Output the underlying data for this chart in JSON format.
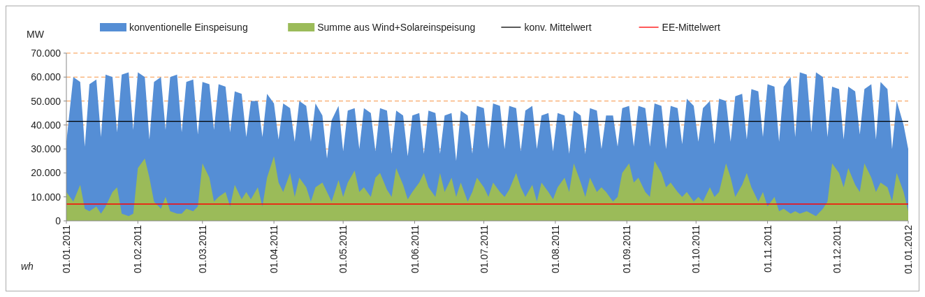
{
  "chart_data": {
    "type": "area",
    "ylabel": "MW",
    "annotations": [
      "wh"
    ],
    "x": [
      "2011-01-01",
      "2011-01-04",
      "2011-01-07",
      "2011-01-09",
      "2011-01-11",
      "2011-01-14",
      "2011-01-16",
      "2011-01-18",
      "2011-01-21",
      "2011-01-23",
      "2011-01-25",
      "2011-01-28",
      "2011-01-30",
      "2011-02-01",
      "2011-02-04",
      "2011-02-06",
      "2011-02-08",
      "2011-02-11",
      "2011-02-13",
      "2011-02-15",
      "2011-02-18",
      "2011-02-20",
      "2011-02-22",
      "2011-02-25",
      "2011-02-27",
      "2011-03-01",
      "2011-03-04",
      "2011-03-06",
      "2011-03-08",
      "2011-03-11",
      "2011-03-13",
      "2011-03-15",
      "2011-03-18",
      "2011-03-20",
      "2011-03-22",
      "2011-03-25",
      "2011-03-27",
      "2011-03-29",
      "2011-04-01",
      "2011-04-03",
      "2011-04-05",
      "2011-04-08",
      "2011-04-10",
      "2011-04-12",
      "2011-04-15",
      "2011-04-17",
      "2011-04-19",
      "2011-04-22",
      "2011-04-24",
      "2011-04-26",
      "2011-04-29",
      "2011-05-01",
      "2011-05-03",
      "2011-05-06",
      "2011-05-08",
      "2011-05-10",
      "2011-05-13",
      "2011-05-15",
      "2011-05-17",
      "2011-05-20",
      "2011-05-22",
      "2011-05-24",
      "2011-05-27",
      "2011-05-29",
      "2011-05-31",
      "2011-06-03",
      "2011-06-05",
      "2011-06-07",
      "2011-06-10",
      "2011-06-12",
      "2011-06-14",
      "2011-06-17",
      "2011-06-19",
      "2011-06-21",
      "2011-06-24",
      "2011-06-26",
      "2011-06-28",
      "2011-07-01",
      "2011-07-03",
      "2011-07-05",
      "2011-07-08",
      "2011-07-10",
      "2011-07-12",
      "2011-07-15",
      "2011-07-17",
      "2011-07-19",
      "2011-07-22",
      "2011-07-24",
      "2011-07-26",
      "2011-07-29",
      "2011-07-31",
      "2011-08-02",
      "2011-08-05",
      "2011-08-07",
      "2011-08-09",
      "2011-08-12",
      "2011-08-14",
      "2011-08-16",
      "2011-08-19",
      "2011-08-21",
      "2011-08-23",
      "2011-08-26",
      "2011-08-28",
      "2011-08-30",
      "2011-09-02",
      "2011-09-04",
      "2011-09-06",
      "2011-09-09",
      "2011-09-11",
      "2011-09-13",
      "2011-09-16",
      "2011-09-18",
      "2011-09-20",
      "2011-09-23",
      "2011-09-25",
      "2011-09-27",
      "2011-09-30",
      "2011-10-02",
      "2011-10-04",
      "2011-10-07",
      "2011-10-09",
      "2011-10-11",
      "2011-10-14",
      "2011-10-16",
      "2011-10-18",
      "2011-10-21",
      "2011-10-23",
      "2011-10-25",
      "2011-10-28",
      "2011-10-30",
      "2011-11-01",
      "2011-11-04",
      "2011-11-06",
      "2011-11-08",
      "2011-11-11",
      "2011-11-13",
      "2011-11-15",
      "2011-11-18",
      "2011-11-20",
      "2011-11-22",
      "2011-11-25",
      "2011-11-27",
      "2011-11-29",
      "2011-12-02",
      "2011-12-04",
      "2011-12-06",
      "2011-12-09",
      "2011-12-11",
      "2011-12-13",
      "2011-12-16",
      "2011-12-18",
      "2011-12-20",
      "2011-12-23",
      "2011-12-25",
      "2011-12-27",
      "2011-12-30",
      "2012-01-01"
    ],
    "series": [
      {
        "name": "konventionelle Einspeisung",
        "color": "#558ed5",
        "values": [
          33000,
          60000,
          58000,
          31000,
          57000,
          59000,
          35000,
          61000,
          60000,
          37000,
          61000,
          62000,
          38000,
          62000,
          60000,
          34000,
          58000,
          60000,
          38000,
          60000,
          61000,
          37000,
          58000,
          59000,
          36000,
          58000,
          57000,
          38000,
          57000,
          56000,
          37000,
          54000,
          53000,
          35000,
          50000,
          50000,
          35000,
          53000,
          49000,
          34000,
          49000,
          47000,
          33000,
          50000,
          48000,
          33000,
          49000,
          44000,
          26000,
          42000,
          48000,
          29000,
          46000,
          47000,
          30000,
          47000,
          45000,
          29000,
          47000,
          46000,
          28000,
          46000,
          44000,
          27000,
          44000,
          45000,
          28000,
          46000,
          45000,
          28000,
          44000,
          45000,
          25000,
          46000,
          44000,
          28000,
          48000,
          47000,
          30000,
          49000,
          48000,
          30000,
          48000,
          47000,
          29000,
          46000,
          48000,
          30000,
          44000,
          45000,
          29000,
          45000,
          44000,
          28000,
          46000,
          44000,
          28000,
          47000,
          46000,
          30000,
          44000,
          44000,
          31000,
          47000,
          48000,
          31000,
          48000,
          47000,
          31000,
          49000,
          48000,
          30000,
          48000,
          47000,
          32000,
          51000,
          48000,
          33000,
          47000,
          50000,
          32000,
          51000,
          50000,
          33000,
          52000,
          53000,
          34000,
          55000,
          54000,
          35000,
          57000,
          56000,
          33000,
          56000,
          60000,
          35000,
          62000,
          61000,
          37000,
          62000,
          60000,
          35000,
          56000,
          55000,
          34000,
          56000,
          54000,
          36000,
          55000,
          57000,
          34000,
          58000,
          55000,
          30000,
          50000,
          40000,
          30000
        ]
      },
      {
        "name": "Summe aus Wind+Solareinspeisung",
        "color": "#9bbb59",
        "values": [
          12000,
          8000,
          15000,
          5000,
          4000,
          6000,
          3000,
          6000,
          12000,
          14000,
          3000,
          2000,
          3000,
          22000,
          26000,
          18000,
          8000,
          5000,
          10000,
          4000,
          3000,
          3000,
          5000,
          4000,
          6000,
          24000,
          18000,
          8000,
          10000,
          12000,
          6000,
          15000,
          9000,
          12000,
          9000,
          14000,
          6000,
          18000,
          27000,
          16000,
          12000,
          20000,
          10000,
          18000,
          14000,
          8000,
          14000,
          16000,
          12000,
          8000,
          17000,
          10000,
          16000,
          21000,
          12000,
          14000,
          10000,
          18000,
          20000,
          13000,
          10000,
          22000,
          15000,
          9000,
          12000,
          16000,
          20000,
          14000,
          10000,
          20000,
          12000,
          18000,
          10000,
          16000,
          8000,
          12000,
          18000,
          14000,
          10000,
          16000,
          12000,
          10000,
          13000,
          20000,
          14000,
          10000,
          15000,
          8000,
          16000,
          12000,
          9000,
          14000,
          18000,
          12000,
          24000,
          16000,
          10000,
          18000,
          12000,
          14000,
          12000,
          8000,
          10000,
          20000,
          24000,
          16000,
          18000,
          12000,
          10000,
          25000,
          20000,
          14000,
          16000,
          12000,
          10000,
          12000,
          8000,
          10000,
          8000,
          14000,
          10000,
          12000,
          24000,
          18000,
          10000,
          15000,
          20000,
          14000,
          8000,
          12000,
          6000,
          10000,
          4000,
          5000,
          3000,
          4000,
          3000,
          4000,
          3000,
          2000,
          5000,
          8000,
          24000,
          20000,
          14000,
          22000,
          15000,
          12000,
          24000,
          18000,
          12000,
          16000,
          14000,
          8000,
          20000,
          12000,
          4000
        ]
      },
      {
        "name": "konv. Mittelwert",
        "type": "line",
        "color": "#000000",
        "x": [
          "2011-01-01",
          "2012-01-01"
        ],
        "values": [
          41500,
          41500
        ]
      },
      {
        "name": "EE-Mittelwert",
        "type": "line",
        "color": "#ff0000",
        "x": [
          "2011-01-01",
          "2012-01-01"
        ],
        "values": [
          7000,
          7000
        ]
      }
    ],
    "ylim": [
      0,
      70000
    ],
    "yticks": [
      0,
      {
        "value": 10000,
        "label": "10.000"
      },
      {
        "value": 20000,
        "label": "20.000"
      },
      {
        "value": 30000,
        "label": "30.000"
      },
      {
        "value": 40000,
        "label": "40.000"
      },
      {
        "value": 50000,
        "label": "50.000"
      },
      {
        "value": 60000,
        "label": "60.000"
      },
      {
        "value": 70000,
        "label": "70.000"
      }
    ],
    "xlim": [
      "2011-01-01",
      "2012-01-01"
    ],
    "xticks": [
      {
        "value": "2011-01-01",
        "label": "01.01.2011"
      },
      {
        "value": "2011-02-01",
        "label": "01.02.2011"
      },
      {
        "value": "2011-03-01",
        "label": "01.03.2011"
      },
      {
        "value": "2011-04-01",
        "label": "01.04.2011"
      },
      {
        "value": "2011-05-01",
        "label": "01.05.2011"
      },
      {
        "value": "2011-06-01",
        "label": "01.06.2011"
      },
      {
        "value": "2011-07-01",
        "label": "01.07.2011"
      },
      {
        "value": "2011-08-01",
        "label": "01.08.2011"
      },
      {
        "value": "2011-09-01",
        "label": "01.09.2011"
      },
      {
        "value": "2011-10-01",
        "label": "01.10.2011"
      },
      {
        "value": "2011-11-01",
        "label": "01.11.2011"
      },
      {
        "value": "2011-12-01",
        "label": "01.12.2011"
      },
      {
        "value": "2012-01-01",
        "label": "01.01.2012"
      }
    ],
    "grid": "y",
    "legend": "top",
    "line_style": "solid",
    "marker": "none"
  }
}
